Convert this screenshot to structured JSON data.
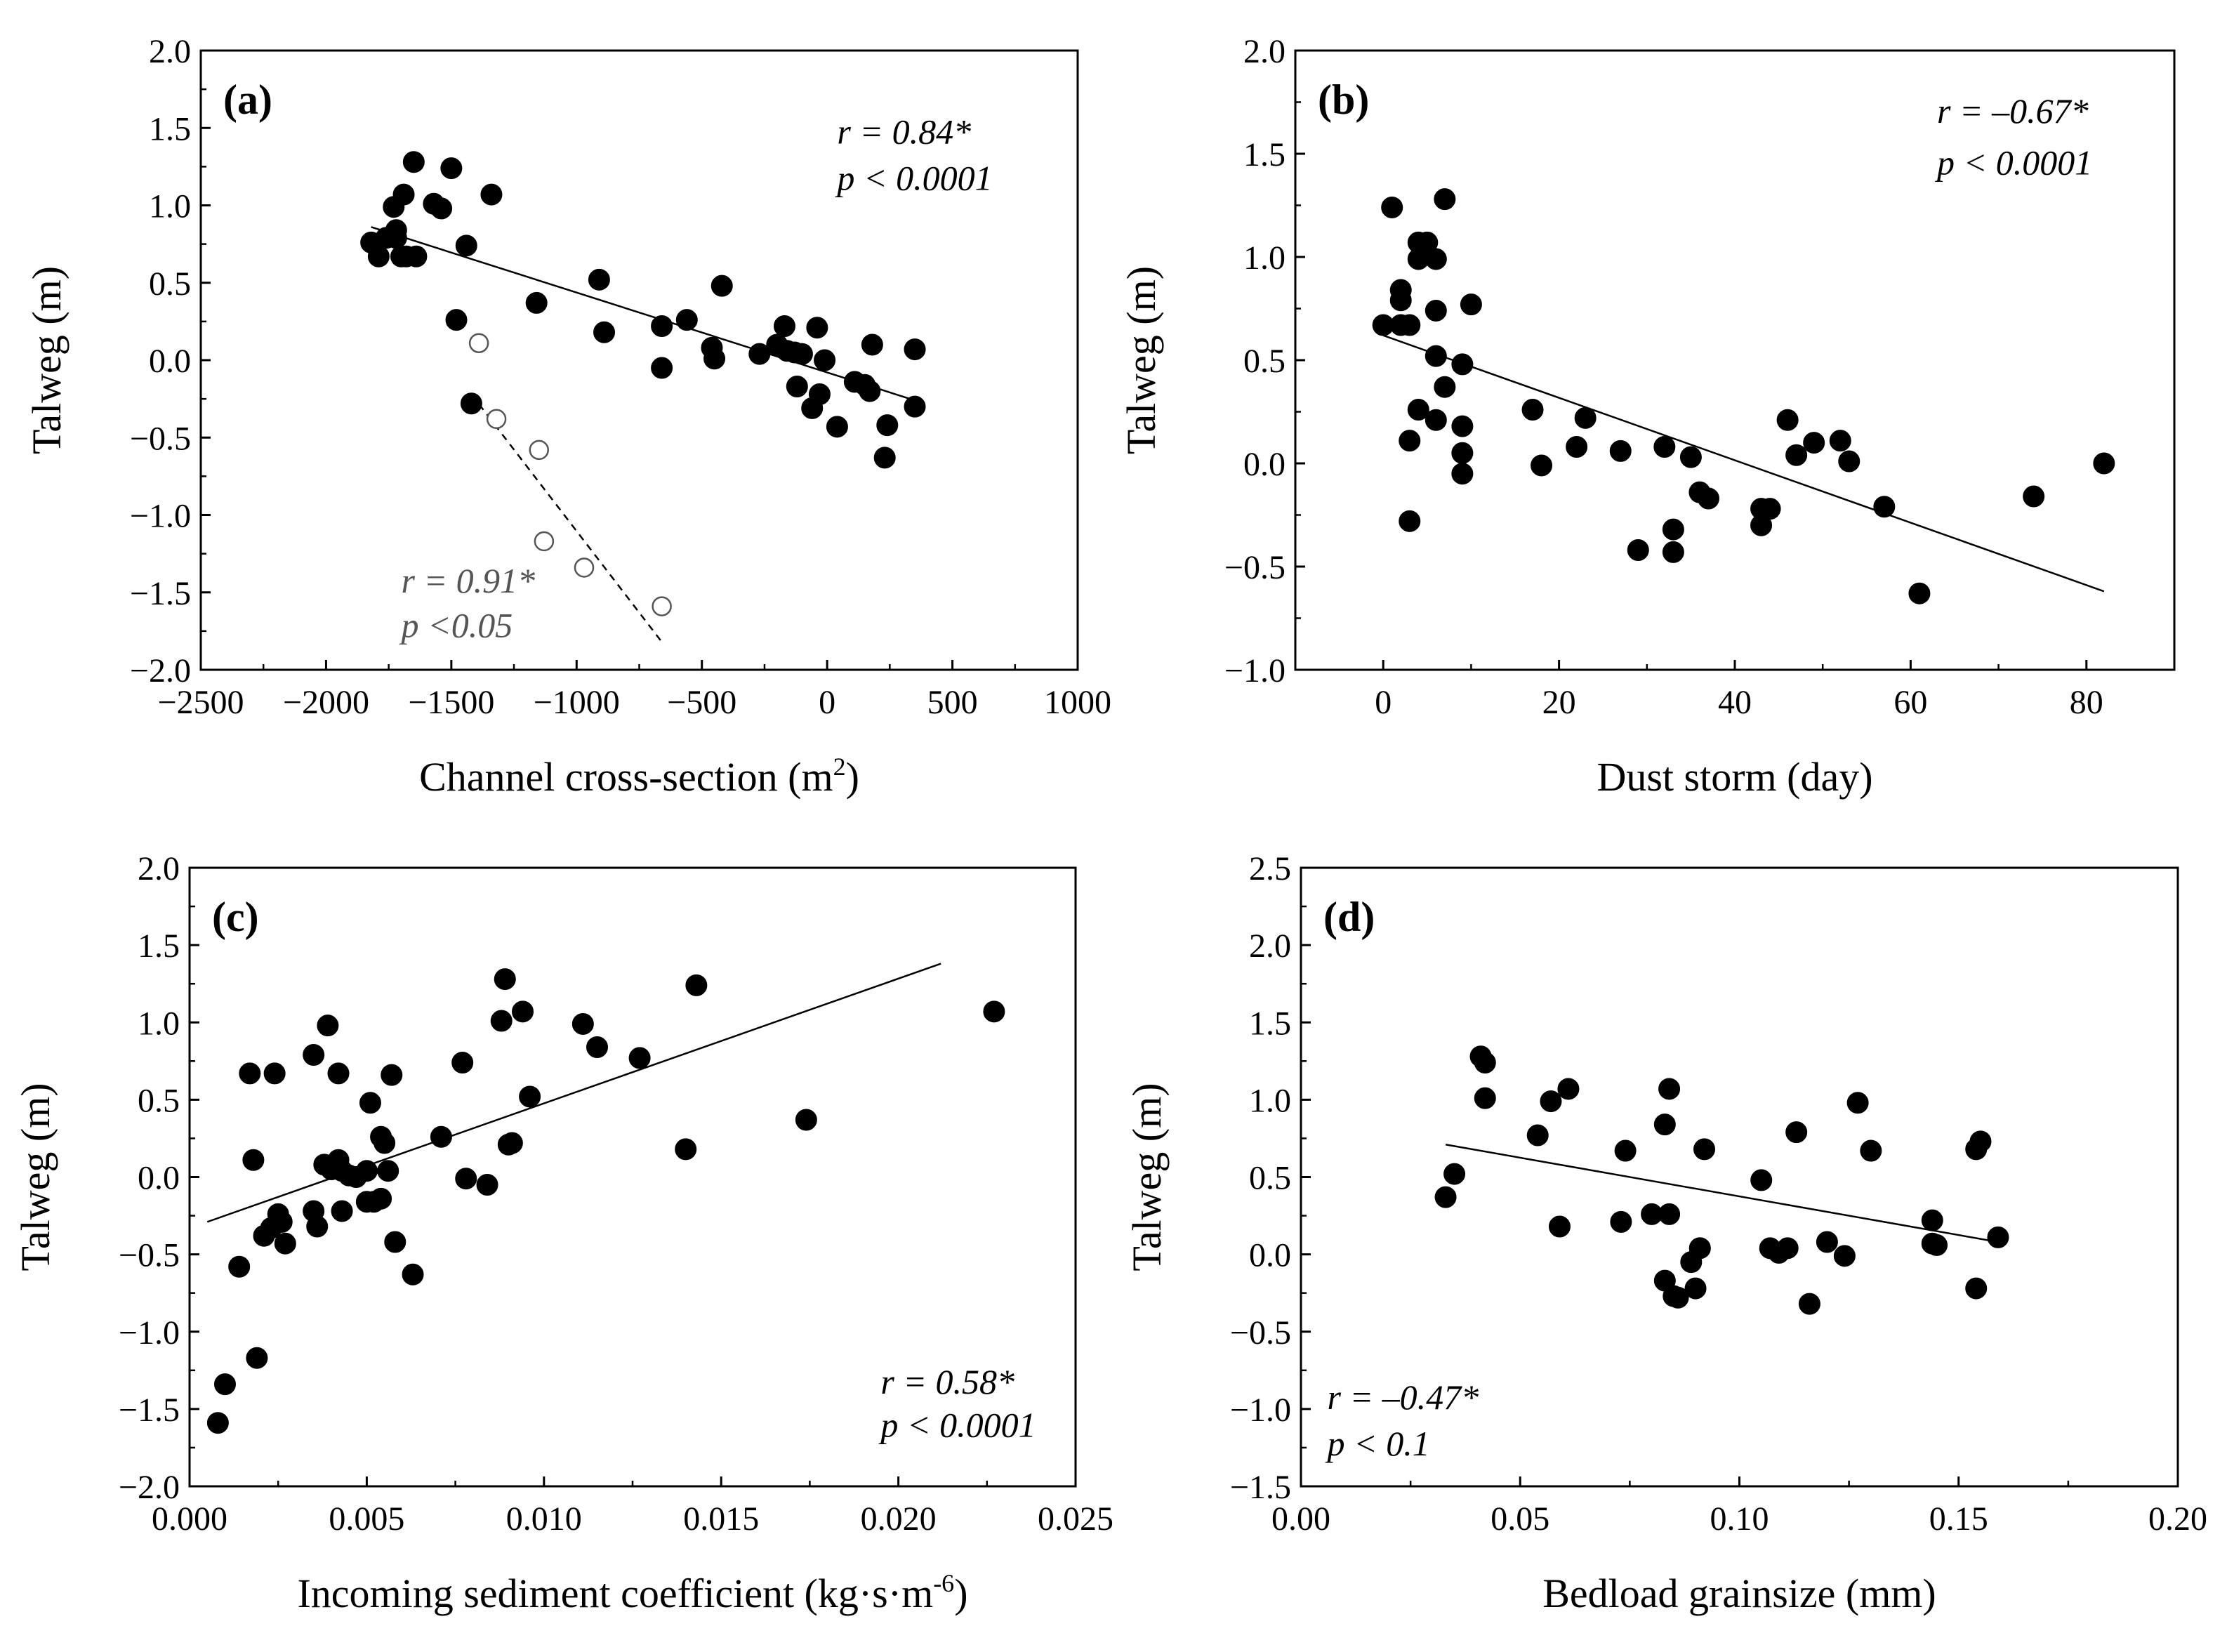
{
  "chart_data": [
    {
      "type": "scatter",
      "panel_label": "(a)",
      "xlabel": "Channel cross-section (m",
      "xlabel_sup": "2",
      "xlabel_tail": ")",
      "ylabel": "Talweg (m)",
      "xlim": [
        -2500,
        1000
      ],
      "ylim": [
        -2.0,
        2.0
      ],
      "xticks": [
        -2500,
        -2000,
        -1500,
        -1000,
        -500,
        0,
        500,
        1000
      ],
      "xtick_labels": [
        "−2500",
        "−2000",
        "−1500",
        "−1000",
        "−500",
        "0",
        "500",
        "1000"
      ],
      "yticks": [
        -2.0,
        -1.5,
        -1.0,
        -0.5,
        0.0,
        0.5,
        1.0,
        1.5,
        2.0
      ],
      "ytick_labels": [
        "−2.0",
        "−1.5",
        "−1.0",
        "−0.5",
        "0.0",
        "0.5",
        "1.0",
        "1.5",
        "2.0"
      ],
      "series": [
        {
          "marker": "filled",
          "x": [
            -1820,
            -1790,
            -1760,
            -1730,
            -1720,
            -1720,
            -1700,
            -1690,
            -1680,
            -1650,
            -1640,
            -1570,
            -1540,
            -1500,
            -1480,
            -1440,
            -1420,
            -1340,
            -1160,
            -910,
            -890,
            -660,
            -660,
            -560,
            -460,
            -450,
            -420,
            -270,
            -200,
            -170,
            -160,
            -130,
            -120,
            -100,
            -60,
            -40,
            -30,
            -10,
            40,
            110,
            150,
            170,
            180,
            230,
            240,
            350,
            350
          ],
          "y": [
            0.76,
            0.67,
            0.79,
            0.99,
            0.84,
            0.79,
            0.67,
            1.07,
            0.67,
            1.28,
            0.67,
            1.01,
            0.98,
            1.24,
            0.26,
            0.74,
            -0.28,
            1.07,
            0.37,
            0.52,
            0.18,
            0.22,
            -0.05,
            0.26,
            0.08,
            0.01,
            0.48,
            0.04,
            0.1,
            0.22,
            0.06,
            0.05,
            -0.17,
            0.04,
            -0.31,
            0.21,
            -0.22,
            0.0,
            -0.43,
            -0.14,
            -0.16,
            -0.2,
            0.1,
            -0.63,
            -0.42,
            0.07,
            -0.3
          ]
        },
        {
          "marker": "open",
          "x": [
            -1390,
            -1320,
            -1150,
            -1130,
            -970,
            -660
          ],
          "y": [
            0.11,
            -0.38,
            -0.58,
            -1.17,
            -1.34,
            -1.59
          ]
        }
      ],
      "fit_lines": [
        {
          "style": "solid",
          "x": [
            -1820,
            350
          ],
          "y": [
            0.86,
            -0.26
          ]
        },
        {
          "style": "dashed",
          "x": [
            -1420,
            -660
          ],
          "y": [
            -0.22,
            -1.82
          ]
        }
      ],
      "annotations": [
        {
          "lines": [
            "r = 0.84*",
            "p  < 0.0001"
          ],
          "x": 40,
          "y": 1.4,
          "y2": 1.1,
          "gray": false
        },
        {
          "lines": [
            "r = 0.91*",
            "p <0.05"
          ],
          "x": -1700,
          "y": -1.5,
          "y2": -1.79,
          "gray": true
        }
      ]
    },
    {
      "type": "scatter",
      "panel_label": "(b)",
      "xlabel": "Dust storm (day)",
      "xlabel_sup": "",
      "xlabel_tail": "",
      "ylabel": "Talweg (m)",
      "xlim": [
        -10,
        90
      ],
      "ylim": [
        -1.0,
        2.0
      ],
      "xticks": [
        0,
        20,
        40,
        60,
        80
      ],
      "xtick_labels": [
        "0",
        "20",
        "40",
        "60",
        "80"
      ],
      "yticks": [
        -1.0,
        -0.5,
        0.0,
        0.5,
        1.0,
        1.5,
        2.0
      ],
      "ytick_labels": [
        "−1.0",
        "−0.5",
        "0.0",
        "0.5",
        "1.0",
        "1.5",
        "2.0"
      ],
      "series": [
        {
          "marker": "filled",
          "x": [
            0,
            1,
            2,
            2,
            2,
            3,
            3,
            3,
            4,
            4,
            4,
            5,
            5,
            6,
            6,
            6,
            6,
            7,
            7,
            9,
            9,
            9,
            9,
            10,
            17,
            18,
            22,
            23,
            27,
            29,
            32,
            33,
            33,
            35,
            36,
            37,
            43,
            43,
            44,
            46,
            47,
            49,
            52,
            53,
            57,
            61,
            74,
            82
          ],
          "y": [
            0.67,
            1.24,
            0.84,
            0.79,
            0.67,
            0.67,
            0.11,
            -0.28,
            0.99,
            1.07,
            0.26,
            1.07,
            1.01,
            0.74,
            0.99,
            0.52,
            0.21,
            0.37,
            1.28,
            0.48,
            0.18,
            0.05,
            -0.05,
            0.77,
            0.26,
            -0.01,
            0.08,
            0.22,
            0.06,
            -0.42,
            0.08,
            -0.32,
            -0.43,
            0.03,
            -0.14,
            -0.17,
            -0.22,
            -0.3,
            -0.22,
            0.21,
            0.04,
            0.1,
            0.11,
            0.01,
            -0.21,
            -0.63,
            -0.16,
            0.0
          ]
        }
      ],
      "fit_lines": [
        {
          "style": "solid",
          "x": [
            0,
            82
          ],
          "y": [
            0.62,
            -0.62
          ]
        }
      ],
      "annotations": [
        {
          "lines": [
            "r = –0.67*",
            "p  < 0.0001"
          ],
          "x": 63,
          "y": 1.65,
          "y2": 1.4,
          "gray": false
        }
      ]
    },
    {
      "type": "scatter",
      "panel_label": "(c)",
      "xlabel": "Incoming sediment coefficient (kg·s·m",
      "xlabel_sup": "-6",
      "xlabel_tail": ")",
      "ylabel": "Talweg (m)",
      "xlim": [
        0.0,
        0.025
      ],
      "ylim": [
        -2.0,
        2.0
      ],
      "xticks": [
        0.0,
        0.005,
        0.01,
        0.015,
        0.02,
        0.025
      ],
      "xtick_labels": [
        "0.000",
        "0.005",
        "0.010",
        "0.015",
        "0.020",
        "0.025"
      ],
      "yticks": [
        -2.0,
        -1.5,
        -1.0,
        -0.5,
        0.0,
        0.5,
        1.0,
        1.5,
        2.0
      ],
      "ytick_labels": [
        "−2.0",
        "−1.5",
        "−1.0",
        "−0.5",
        "0.0",
        "0.5",
        "1.0",
        "1.5",
        "2.0"
      ],
      "series": [
        {
          "marker": "filled",
          "x": [
            0.0008,
            0.001,
            0.0014,
            0.0017,
            0.0018,
            0.0019,
            0.0021,
            0.0023,
            0.0024,
            0.0025,
            0.0026,
            0.0027,
            0.0035,
            0.0035,
            0.0036,
            0.0038,
            0.0039,
            0.004,
            0.0041,
            0.0042,
            0.0042,
            0.0043,
            0.0043,
            0.0045,
            0.0047,
            0.005,
            0.005,
            0.0051,
            0.0052,
            0.0054,
            0.0054,
            0.0055,
            0.0056,
            0.0057,
            0.0058,
            0.0063,
            0.0071,
            0.0077,
            0.0078,
            0.0084,
            0.0088,
            0.0089,
            0.009,
            0.0091,
            0.0094,
            0.0096,
            0.0111,
            0.0115,
            0.0127,
            0.014,
            0.0143,
            0.0174,
            0.0227
          ],
          "y": [
            -1.59,
            -1.34,
            -0.58,
            0.67,
            0.11,
            -1.17,
            -0.38,
            -0.33,
            0.67,
            -0.24,
            -0.29,
            -0.43,
            0.79,
            -0.22,
            -0.32,
            0.08,
            0.98,
            0.05,
            0.08,
            0.67,
            0.11,
            0.04,
            -0.22,
            0.01,
            0.0,
            -0.16,
            0.04,
            0.48,
            -0.16,
            0.26,
            -0.14,
            0.22,
            0.04,
            0.66,
            -0.42,
            -0.63,
            0.26,
            0.74,
            -0.01,
            -0.05,
            1.01,
            1.28,
            0.21,
            0.22,
            1.07,
            0.52,
            0.99,
            0.84,
            0.77,
            0.18,
            1.24,
            0.37,
            1.07
          ]
        }
      ],
      "fit_lines": [
        {
          "style": "solid",
          "x": [
            0.0005,
            0.0212
          ],
          "y": [
            -0.29,
            1.38
          ]
        }
      ],
      "annotations": [
        {
          "lines": [
            "r = 0.58*",
            "p  < 0.0001"
          ],
          "x": 0.0195,
          "y": -1.4,
          "y2": -1.68,
          "gray": false
        }
      ]
    },
    {
      "type": "scatter",
      "panel_label": "(d)",
      "xlabel": "Bedload grainsize (mm)",
      "xlabel_sup": "",
      "xlabel_tail": "",
      "ylabel": "Talweg (m)",
      "xlim": [
        0.0,
        0.2
      ],
      "ylim": [
        -1.5,
        2.5
      ],
      "xticks": [
        0.0,
        0.05,
        0.1,
        0.15,
        0.2
      ],
      "xtick_labels": [
        "0.00",
        "0.05",
        "0.10",
        "0.15",
        "0.20"
      ],
      "yticks": [
        -1.5,
        -1.0,
        -0.5,
        0.0,
        0.5,
        1.0,
        1.5,
        2.0,
        2.5
      ],
      "ytick_labels": [
        "−1.5",
        "−1.0",
        "−0.5",
        "0.0",
        "0.5",
        "1.0",
        "1.5",
        "2.0",
        "2.5"
      ],
      "series": [
        {
          "marker": "filled",
          "x": [
            0.033,
            0.035,
            0.041,
            0.042,
            0.042,
            0.054,
            0.057,
            0.059,
            0.061,
            0.073,
            0.074,
            0.08,
            0.083,
            0.083,
            0.084,
            0.084,
            0.085,
            0.086,
            0.089,
            0.09,
            0.091,
            0.091,
            0.092,
            0.105,
            0.107,
            0.109,
            0.111,
            0.113,
            0.116,
            0.12,
            0.124,
            0.127,
            0.13,
            0.144,
            0.144,
            0.145,
            0.154,
            0.154,
            0.155,
            0.159
          ],
          "y": [
            0.37,
            0.52,
            1.28,
            1.24,
            1.01,
            0.77,
            0.99,
            0.18,
            1.07,
            0.21,
            0.67,
            0.26,
            0.84,
            -0.17,
            0.26,
            1.07,
            -0.27,
            -0.28,
            -0.05,
            -0.22,
            0.04,
            0.04,
            0.68,
            0.48,
            0.04,
            0.01,
            0.04,
            0.79,
            -0.32,
            0.08,
            -0.01,
            0.98,
            0.67,
            0.22,
            0.07,
            0.06,
            -0.22,
            0.68,
            0.73,
            0.11
          ]
        }
      ],
      "fit_lines": [
        {
          "style": "solid",
          "x": [
            0.033,
            0.159
          ],
          "y": [
            0.71,
            0.08
          ]
        }
      ],
      "annotations": [
        {
          "lines": [
            "r = –0.47*",
            "p < 0.1"
          ],
          "x": 0.006,
          "y": -1.0,
          "y2": -1.3,
          "gray": false
        }
      ]
    }
  ]
}
